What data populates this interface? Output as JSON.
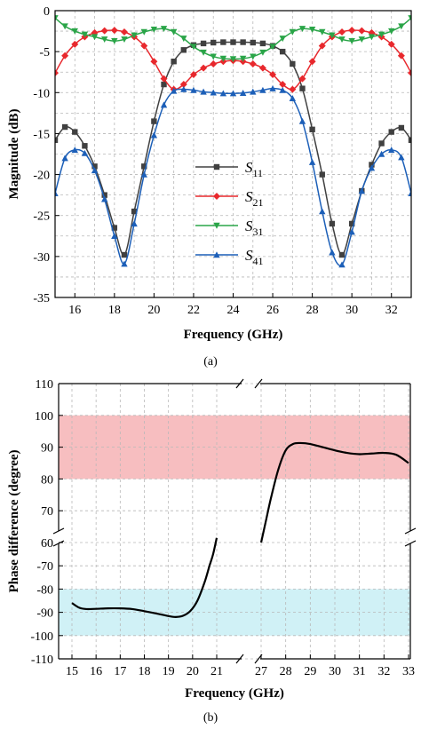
{
  "chart_data": [
    {
      "panel": "a",
      "type": "line",
      "caption": "(a)",
      "xlabel": "Frequency (GHz)",
      "ylabel": "Magnitude (dB)",
      "xlim": [
        15,
        33
      ],
      "ylim": [
        -35,
        0
      ],
      "xticks": [
        16,
        18,
        20,
        22,
        24,
        26,
        28,
        30,
        32
      ],
      "yticks": [
        0,
        -5,
        -10,
        -15,
        -20,
        -25,
        -30,
        -35
      ],
      "grid": true,
      "legend_position": "lower-center",
      "series": [
        {
          "name": "S",
          "sub": "11",
          "color": "#404040",
          "marker": "square",
          "x": [
            15,
            15.5,
            16,
            16.5,
            17,
            17.5,
            18,
            18.5,
            19,
            19.5,
            20,
            20.5,
            21,
            21.5,
            22,
            22.5,
            23,
            23.5,
            24,
            24.5,
            25,
            25.5,
            26,
            26.5,
            27,
            27.5,
            28,
            28.5,
            29,
            29.5,
            30,
            30.5,
            31,
            31.5,
            32,
            32.5,
            33
          ],
          "y": [
            -15.8,
            -14.2,
            -14.8,
            -16.5,
            -19,
            -22.5,
            -26.5,
            -29.8,
            -24.5,
            -19,
            -13.5,
            -9,
            -6.2,
            -4.8,
            -4.2,
            -4.0,
            -3.9,
            -3.85,
            -3.85,
            -3.85,
            -3.9,
            -4.0,
            -4.3,
            -5.0,
            -6.5,
            -9.5,
            -14.5,
            -20,
            -26,
            -29.8,
            -26,
            -22,
            -18.8,
            -16.2,
            -14.8,
            -14.3,
            -15.8
          ]
        },
        {
          "name": "S",
          "sub": "21",
          "color": "#e8282d",
          "marker": "diamond",
          "x": [
            15,
            15.5,
            16,
            16.5,
            17,
            17.5,
            18,
            18.5,
            19,
            19.5,
            20,
            20.5,
            21,
            21.5,
            22,
            22.5,
            23,
            23.5,
            24,
            24.5,
            25,
            25.5,
            26,
            26.5,
            27,
            27.5,
            28,
            28.5,
            29,
            29.5,
            30,
            30.5,
            31,
            31.5,
            32,
            32.5,
            33
          ],
          "y": [
            -7.6,
            -5.5,
            -4.1,
            -3.2,
            -2.7,
            -2.45,
            -2.4,
            -2.6,
            -3.2,
            -4.3,
            -6.2,
            -8.3,
            -9.6,
            -9.0,
            -7.8,
            -7.0,
            -6.5,
            -6.2,
            -6.1,
            -6.2,
            -6.5,
            -7.0,
            -7.8,
            -9.0,
            -9.6,
            -8.3,
            -6.2,
            -4.3,
            -3.2,
            -2.6,
            -2.4,
            -2.45,
            -2.7,
            -3.2,
            -4.1,
            -5.5,
            -7.6
          ]
        },
        {
          "name": "S",
          "sub": "31",
          "color": "#2aa548",
          "marker": "triangle-down",
          "x": [
            15,
            15.5,
            16,
            16.5,
            17,
            17.5,
            18,
            18.5,
            19,
            19.5,
            20,
            20.5,
            21,
            21.5,
            22,
            22.5,
            23,
            23.5,
            24,
            24.5,
            25,
            25.5,
            26,
            26.5,
            27,
            27.5,
            28,
            28.5,
            29,
            29.5,
            30,
            30.5,
            31,
            31.5,
            32,
            32.5,
            33
          ],
          "y": [
            -0.9,
            -1.9,
            -2.5,
            -2.9,
            -3.2,
            -3.5,
            -3.7,
            -3.5,
            -3.0,
            -2.6,
            -2.3,
            -2.2,
            -2.6,
            -3.4,
            -4.4,
            -5.1,
            -5.6,
            -5.85,
            -5.9,
            -5.85,
            -5.6,
            -5.1,
            -4.4,
            -3.4,
            -2.6,
            -2.2,
            -2.3,
            -2.6,
            -3.0,
            -3.5,
            -3.7,
            -3.5,
            -3.2,
            -2.9,
            -2.5,
            -1.9,
            -0.9
          ]
        },
        {
          "name": "S",
          "sub": "41",
          "color": "#1c5fb8",
          "marker": "triangle-up",
          "x": [
            15,
            15.5,
            16,
            16.5,
            17,
            17.5,
            18,
            18.5,
            19,
            19.5,
            20,
            20.5,
            21,
            21.5,
            22,
            22.5,
            23,
            23.5,
            24,
            24.5,
            25,
            25.5,
            26,
            26.5,
            27,
            27.5,
            28,
            28.5,
            29,
            29.5,
            30,
            30.5,
            31,
            31.5,
            32,
            32.5,
            33
          ],
          "y": [
            -22.3,
            -18.0,
            -17.0,
            -17.4,
            -19.5,
            -23.0,
            -27.5,
            -30.9,
            -26,
            -20,
            -15.2,
            -11.5,
            -9.8,
            -9.6,
            -9.7,
            -9.9,
            -10.0,
            -10.1,
            -10.1,
            -10.05,
            -9.9,
            -9.7,
            -9.5,
            -9.7,
            -10.7,
            -13.5,
            -18.5,
            -24.5,
            -29.5,
            -31.0,
            -27.0,
            -22.0,
            -19.2,
            -17.5,
            -17.0,
            -17.9,
            -22.3
          ]
        }
      ]
    },
    {
      "panel": "b",
      "type": "line",
      "caption": "(b)",
      "xlabel": "Frequency (GHz)",
      "ylabel": "Phase difference (degree)",
      "xticks": [
        15,
        16,
        17,
        18,
        19,
        20,
        21,
        27,
        28,
        29,
        30,
        31,
        32,
        33
      ],
      "yticks_upper": [
        110,
        100,
        90,
        80,
        70,
        60
      ],
      "yticks_lower": [
        -70,
        -80,
        -90,
        -100,
        -110
      ],
      "x_break": [
        21,
        27
      ],
      "y_break": [
        -60,
        60
      ],
      "shaded_bands": [
        {
          "ymin": 80,
          "ymax": 100,
          "color": "#f6b3b5"
        },
        {
          "ymin": -100,
          "ymax": -80,
          "color": "#c8eef5"
        }
      ],
      "series": [
        {
          "color": "#000000",
          "x": [
            15,
            15.3,
            15.6,
            16,
            16.5,
            17,
            17.5,
            18,
            18.5,
            19,
            19.3,
            19.6,
            19.9,
            20.2,
            20.5,
            20.7,
            20.85,
            21
          ],
          "y": [
            -86,
            -88,
            -88.6,
            -88.5,
            -88.3,
            -88.3,
            -88.6,
            -89.5,
            -90.5,
            -91.6,
            -92,
            -91.5,
            -89.5,
            -85,
            -77,
            -70,
            -65,
            -58
          ]
        },
        {
          "color": "#000000",
          "x": [
            27,
            27.2,
            27.4,
            27.7,
            28,
            28.3,
            28.6,
            29,
            29.5,
            30,
            30.5,
            31,
            31.5,
            32,
            32.5,
            33
          ],
          "y": [
            60,
            67,
            74,
            83,
            89,
            91,
            91.3,
            91,
            90,
            89,
            88.2,
            87.8,
            88,
            88.2,
            87.6,
            85
          ]
        }
      ]
    }
  ]
}
